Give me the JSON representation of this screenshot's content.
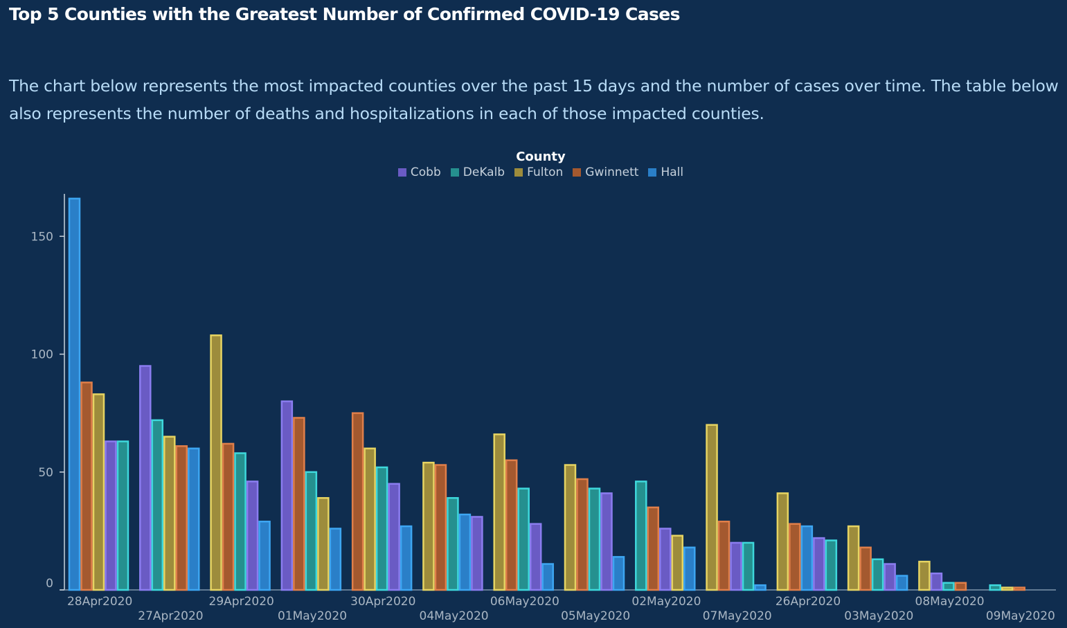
{
  "page": {
    "title": "Top 5 Counties with the Greatest Number of Confirmed COVID-19 Cases",
    "description": "The chart below represents the most impacted counties over the past 15 days and the number of cases over time. The table below also represents the number of deaths and hospitalizations in each of those impacted counties."
  },
  "colors": {
    "Cobb": {
      "fill": "#6a5bc4",
      "stroke": "#8b7df0"
    },
    "DeKalb": {
      "fill": "#25908f",
      "stroke": "#3ed8dc"
    },
    "Fulton": {
      "fill": "#9d8c3c",
      "stroke": "#e6d462"
    },
    "Gwinnett": {
      "fill": "#a4592f",
      "stroke": "#e07f4a"
    },
    "Hall": {
      "fill": "#2a7fc8",
      "stroke": "#3da6f2"
    }
  },
  "chart_data": {
    "type": "bar",
    "legend_title": "County",
    "legend_position": "top-center",
    "series_names": [
      "Cobb",
      "DeKalb",
      "Fulton",
      "Gwinnett",
      "Hall"
    ],
    "ylim": [
      0,
      168
    ],
    "yticks": [
      0,
      50,
      100,
      150
    ],
    "grid": false,
    "groups": [
      {
        "category": "28Apr2020",
        "bars": [
          {
            "series": "Hall",
            "value": 166
          },
          {
            "series": "Gwinnett",
            "value": 88
          },
          {
            "series": "Fulton",
            "value": 83
          },
          {
            "series": "Cobb",
            "value": 63
          },
          {
            "series": "DeKalb",
            "value": 63
          }
        ]
      },
      {
        "category": "27Apr2020",
        "bars": [
          {
            "series": "Cobb",
            "value": 95
          },
          {
            "series": "DeKalb",
            "value": 72
          },
          {
            "series": "Fulton",
            "value": 65
          },
          {
            "series": "Gwinnett",
            "value": 61
          },
          {
            "series": "Hall",
            "value": 60
          }
        ]
      },
      {
        "category": "29Apr2020",
        "bars": [
          {
            "series": "Fulton",
            "value": 108
          },
          {
            "series": "Gwinnett",
            "value": 62
          },
          {
            "series": "DeKalb",
            "value": 58
          },
          {
            "series": "Cobb",
            "value": 46
          },
          {
            "series": "Hall",
            "value": 29
          }
        ]
      },
      {
        "category": "01May2020",
        "bars": [
          {
            "series": "Cobb",
            "value": 80
          },
          {
            "series": "Gwinnett",
            "value": 73
          },
          {
            "series": "DeKalb",
            "value": 50
          },
          {
            "series": "Fulton",
            "value": 39
          },
          {
            "series": "Hall",
            "value": 26
          }
        ]
      },
      {
        "category": "30Apr2020",
        "bars": [
          {
            "series": "Gwinnett",
            "value": 75
          },
          {
            "series": "Fulton",
            "value": 60
          },
          {
            "series": "DeKalb",
            "value": 52
          },
          {
            "series": "Cobb",
            "value": 45
          },
          {
            "series": "Hall",
            "value": 27
          }
        ]
      },
      {
        "category": "04May2020",
        "bars": [
          {
            "series": "Fulton",
            "value": 54
          },
          {
            "series": "Gwinnett",
            "value": 53
          },
          {
            "series": "DeKalb",
            "value": 39
          },
          {
            "series": "Hall",
            "value": 32
          },
          {
            "series": "Cobb",
            "value": 31
          }
        ]
      },
      {
        "category": "06May2020",
        "bars": [
          {
            "series": "Fulton",
            "value": 66
          },
          {
            "series": "Gwinnett",
            "value": 55
          },
          {
            "series": "DeKalb",
            "value": 43
          },
          {
            "series": "Cobb",
            "value": 28
          },
          {
            "series": "Hall",
            "value": 11
          }
        ]
      },
      {
        "category": "05May2020",
        "bars": [
          {
            "series": "Fulton",
            "value": 53
          },
          {
            "series": "Gwinnett",
            "value": 47
          },
          {
            "series": "DeKalb",
            "value": 43
          },
          {
            "series": "Cobb",
            "value": 41
          },
          {
            "series": "Hall",
            "value": 14
          }
        ]
      },
      {
        "category": "02May2020",
        "bars": [
          {
            "series": "DeKalb",
            "value": 46
          },
          {
            "series": "Gwinnett",
            "value": 35
          },
          {
            "series": "Cobb",
            "value": 26
          },
          {
            "series": "Fulton",
            "value": 23
          },
          {
            "series": "Hall",
            "value": 18
          }
        ]
      },
      {
        "category": "07May2020",
        "bars": [
          {
            "series": "Fulton",
            "value": 70
          },
          {
            "series": "Gwinnett",
            "value": 29
          },
          {
            "series": "Cobb",
            "value": 20
          },
          {
            "series": "DeKalb",
            "value": 20
          },
          {
            "series": "Hall",
            "value": 2
          }
        ]
      },
      {
        "category": "26Apr2020",
        "bars": [
          {
            "series": "Fulton",
            "value": 41
          },
          {
            "series": "Gwinnett",
            "value": 28
          },
          {
            "series": "Hall",
            "value": 27
          },
          {
            "series": "Cobb",
            "value": 22
          },
          {
            "series": "DeKalb",
            "value": 21
          }
        ]
      },
      {
        "category": "03May2020",
        "bars": [
          {
            "series": "Fulton",
            "value": 27
          },
          {
            "series": "Gwinnett",
            "value": 18
          },
          {
            "series": "DeKalb",
            "value": 13
          },
          {
            "series": "Cobb",
            "value": 11
          },
          {
            "series": "Hall",
            "value": 6
          }
        ]
      },
      {
        "category": "08May2020",
        "bars": [
          {
            "series": "Fulton",
            "value": 12
          },
          {
            "series": "Cobb",
            "value": 7
          },
          {
            "series": "DeKalb",
            "value": 3
          },
          {
            "series": "Gwinnett",
            "value": 3
          }
        ]
      },
      {
        "category": "09May2020",
        "bars": [
          {
            "series": "DeKalb",
            "value": 2
          },
          {
            "series": "Fulton",
            "value": 1
          },
          {
            "series": "Gwinnett",
            "value": 1
          }
        ]
      }
    ]
  }
}
